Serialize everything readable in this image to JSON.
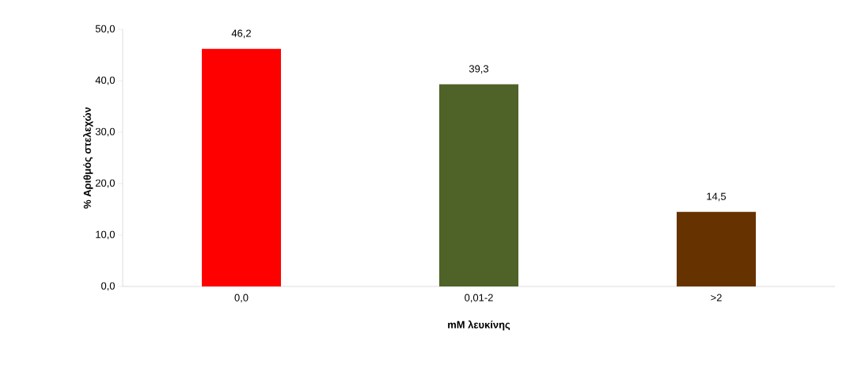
{
  "chart_data": {
    "type": "bar",
    "xlabel": "mM  λευκίνης",
    "ylabel": "% Αριθμός στελεχών",
    "categories": [
      "0,0",
      "0,01-2",
      ">2"
    ],
    "values": [
      46.2,
      39.3,
      14.5
    ],
    "colors": [
      "#ff0000",
      "#4f6228",
      "#663300"
    ],
    "value_labels": [
      "46,2",
      "39,3",
      "14,5"
    ],
    "ylim": [
      0,
      50
    ],
    "yticks": [
      {
        "value": 0,
        "label": "0,0"
      },
      {
        "value": 10,
        "label": "10,0"
      },
      {
        "value": 20,
        "label": "20,0"
      },
      {
        "value": 30,
        "label": "30,0"
      },
      {
        "value": 40,
        "label": "40,0"
      },
      {
        "value": 50,
        "label": "50,0"
      }
    ],
    "grid": false
  }
}
